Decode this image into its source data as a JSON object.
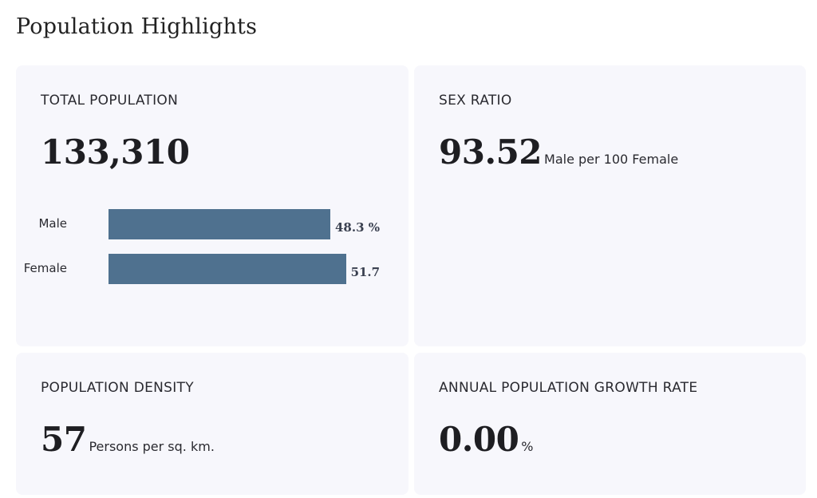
{
  "page_title": "Population Highlights",
  "total_population": {
    "label": "TOTAL POPULATION",
    "value": "133,310",
    "chart_data": {
      "type": "bar",
      "orientation": "horizontal",
      "categories": [
        "Male",
        "Female"
      ],
      "values": [
        48.3,
        51.7
      ],
      "value_labels": [
        "48.3 %",
        "51.7 %"
      ],
      "unit": "%",
      "color": "#4f718f"
    }
  },
  "sex_ratio": {
    "label": "SEX RATIO",
    "value": "93.52",
    "unit": "Male per 100 Female"
  },
  "population_density": {
    "label": "POPULATION DENSITY",
    "value": "57",
    "unit": "Persons per sq. km."
  },
  "growth_rate": {
    "label": "ANNUAL POPULATION GROWTH RATE",
    "value": "0.00",
    "unit": "%"
  }
}
